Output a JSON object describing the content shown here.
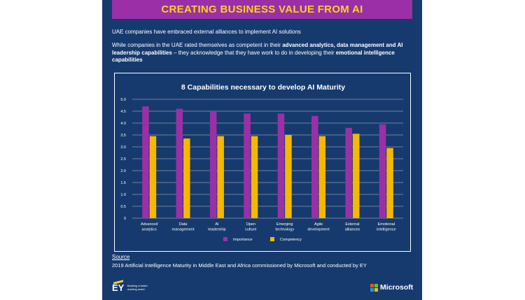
{
  "banner": {
    "title": "CREATING BUSINESS VALUE FROM AI"
  },
  "intro": {
    "line1": "UAE companies have embraced external alliances to implement AI solutions",
    "p2_part1": "While companies in the UAE rated themselves as competent in their ",
    "p2_bold1": "advanced analytics, data management and AI leadership capabilities",
    "p2_part2": " – they acknowledge that they have work to do in developing their ",
    "p2_bold2": "emotional intelligence capabilities"
  },
  "source": {
    "label": "Source",
    "text": "2019 Artificial Intelligence Maturity in Middle East and Africa commissioned by Microsoft and conducted by EY"
  },
  "logos": {
    "ey_mark": "EY",
    "ey_tagline": "Building a better working world",
    "microsoft": "Microsoft"
  },
  "colors": {
    "background": "#163a6e",
    "banner": "#9b2fa8",
    "accent_yellow": "#fcd21b",
    "importance": "#9b2fa8",
    "competency": "#f5b800"
  },
  "chart_data": {
    "type": "bar",
    "title": "8 Capabilities necessary to develop AI Maturity",
    "categories": [
      [
        "Advanced",
        "analytics"
      ],
      [
        "Data",
        "management"
      ],
      [
        "AI",
        "leadership"
      ],
      [
        "Open",
        "culture"
      ],
      [
        "Emerging",
        "technology"
      ],
      [
        "Agile",
        "development"
      ],
      [
        "External",
        "alliances"
      ],
      [
        "Emotional",
        "intelligence"
      ]
    ],
    "series": [
      {
        "name": "Importance",
        "color": "#9b2fa8",
        "values": [
          4.7,
          4.6,
          4.5,
          4.4,
          4.4,
          4.3,
          3.8,
          3.95
        ]
      },
      {
        "name": "Competency",
        "color": "#f5b800",
        "values": [
          3.45,
          3.35,
          3.45,
          3.45,
          3.5,
          3.45,
          3.55,
          2.95
        ]
      }
    ],
    "ylim": [
      0,
      5
    ],
    "yticks": [
      "0",
      "0.5",
      "1.0",
      "1.5",
      "2.0",
      "2.5",
      "3.0",
      "3.5",
      "4.0",
      "4.5",
      "5.0"
    ],
    "grid": true,
    "legend_position": "bottom"
  }
}
